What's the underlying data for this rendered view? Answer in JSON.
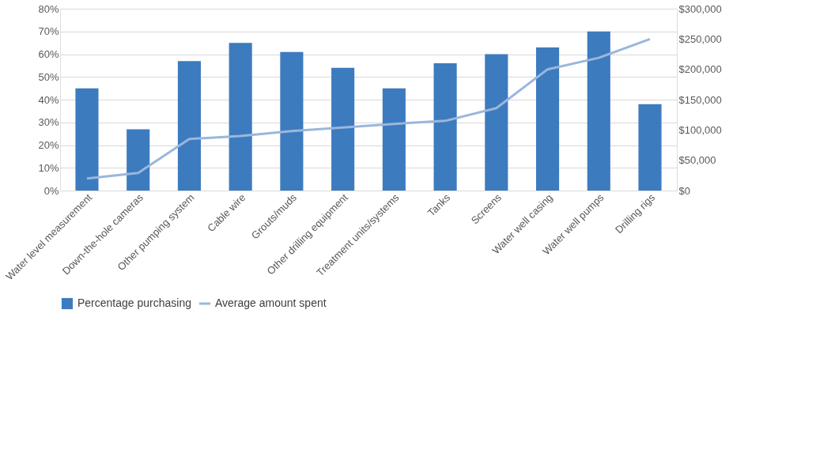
{
  "chart_data": {
    "type": "bar",
    "categories": [
      "Water level measurement",
      "Down-the-hole cameras",
      "Other pumping system",
      "Cable wire",
      "Grouts/muds",
      "Other drilling equipment",
      "Treatment units/systems",
      "Tanks",
      "Screens",
      "Water well casing",
      "Water well pumps",
      "Drilling rigs"
    ],
    "series": [
      {
        "name": "Percentage purchasing",
        "color": "#3d7bbf",
        "values": [
          45,
          27,
          57,
          65,
          61,
          54,
          45,
          56,
          60,
          63,
          70,
          38
        ]
      },
      {
        "name": "Average amount spent",
        "type": "line",
        "axis": "y2",
        "color": "#9ab7dc",
        "values": [
          20000,
          29000,
          85000,
          90000,
          98000,
          104000,
          110000,
          115000,
          136000,
          200000,
          219000,
          250000
        ]
      }
    ],
    "ylim": [
      0,
      80
    ],
    "yticks": [
      {
        "value": 0,
        "label": "0%"
      },
      {
        "value": 10,
        "label": "10%"
      },
      {
        "value": 20,
        "label": "20%"
      },
      {
        "value": 30,
        "label": "30%"
      },
      {
        "value": 40,
        "label": "40%"
      },
      {
        "value": 50,
        "label": "50%"
      },
      {
        "value": 60,
        "label": "60%"
      },
      {
        "value": 70,
        "label": "70%"
      },
      {
        "value": 80,
        "label": "80%"
      }
    ],
    "y2lim": [
      0,
      300000
    ],
    "y2ticks": [
      {
        "value": 0,
        "label": "$0"
      },
      {
        "value": 50000,
        "label": "$50,000"
      },
      {
        "value": 100000,
        "label": "$100,000"
      },
      {
        "value": 150000,
        "label": "$150,000"
      },
      {
        "value": 200000,
        "label": "$200,000"
      },
      {
        "value": 250000,
        "label": "$250,000"
      },
      {
        "value": 300000,
        "label": "$300,000"
      }
    ],
    "grid": "y",
    "legend": "bottom",
    "marker": "none",
    "line_style": "solid"
  }
}
